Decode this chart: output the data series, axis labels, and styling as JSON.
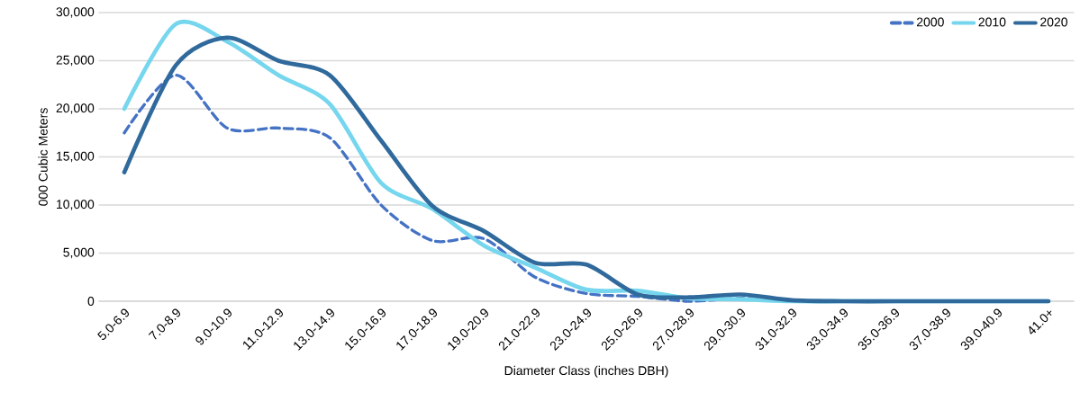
{
  "chart_data": {
    "type": "line",
    "xlabel": "Diameter Class (inches DBH)",
    "ylabel": "000 Cubic Meters",
    "categories": [
      "5.0-6.9",
      "7.0-8.9",
      "9.0-10.9",
      "11.0-12.9",
      "13.0-14.9",
      "15.0-16.9",
      "17.0-18.9",
      "19.0-20.9",
      "21.0-22.9",
      "23.0-24.9",
      "25.0-26.9",
      "27.0-28.9",
      "29.0-30.9",
      "31.0-32.9",
      "33.0-34.9",
      "35.0-36.9",
      "37.0-38.9",
      "39.0-40.9",
      "41.0+"
    ],
    "series": [
      {
        "name": "2000",
        "color": "#4472c4",
        "line_style": "dashed",
        "values": [
          17500,
          23500,
          18000,
          18000,
          17000,
          10000,
          6300,
          6500,
          2500,
          800,
          500,
          0,
          300,
          0,
          0,
          0,
          0,
          0,
          0
        ]
      },
      {
        "name": "2010",
        "color": "#75d6ee",
        "line_style": "solid",
        "values": [
          20000,
          28800,
          27000,
          23500,
          20500,
          12300,
          9600,
          5800,
          3500,
          1200,
          1100,
          300,
          200,
          0,
          0,
          0,
          0,
          0,
          0
        ]
      },
      {
        "name": "2020",
        "color": "#306a9c",
        "line_style": "solid",
        "values": [
          13400,
          24500,
          27400,
          25000,
          23500,
          16700,
          9900,
          7300,
          4000,
          3800,
          700,
          400,
          700,
          100,
          0,
          0,
          0,
          0,
          0
        ]
      }
    ],
    "ylim": [
      0,
      30000
    ],
    "yticks": [
      {
        "value": 0,
        "label": "0"
      },
      {
        "value": 5000,
        "label": "5,000"
      },
      {
        "value": 10000,
        "label": "10,000"
      },
      {
        "value": 15000,
        "label": "15,000"
      },
      {
        "value": 20000,
        "label": "20,000"
      },
      {
        "value": 25000,
        "label": "25,000"
      },
      {
        "value": 30000,
        "label": "30,000"
      }
    ],
    "grid": "y",
    "legend": "top right"
  }
}
